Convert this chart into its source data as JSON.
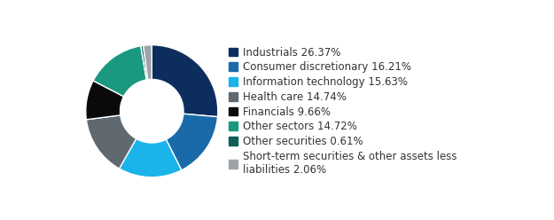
{
  "labels": [
    "Industrials 26.37%",
    "Consumer discretionary 16.21%",
    "Information technology 15.63%",
    "Health care 14.74%",
    "Financials 9.66%",
    "Other sectors 14.72%",
    "Other securities 0.61%",
    "Short-term securities & other assets less\nliabilities 2.06%"
  ],
  "values": [
    26.37,
    16.21,
    15.63,
    14.74,
    9.66,
    14.72,
    0.61,
    2.06
  ],
  "colors": [
    "#0d2d5e",
    "#1a6aaa",
    "#1ab4ea",
    "#606870",
    "#0a0a0a",
    "#1a9980",
    "#0d5f58",
    "#9ea4a8"
  ],
  "background_color": "#ffffff",
  "wedge_edge_color": "#ffffff",
  "donut_ratio": 0.52,
  "legend_fontsize": 8.5,
  "startangle": 90
}
